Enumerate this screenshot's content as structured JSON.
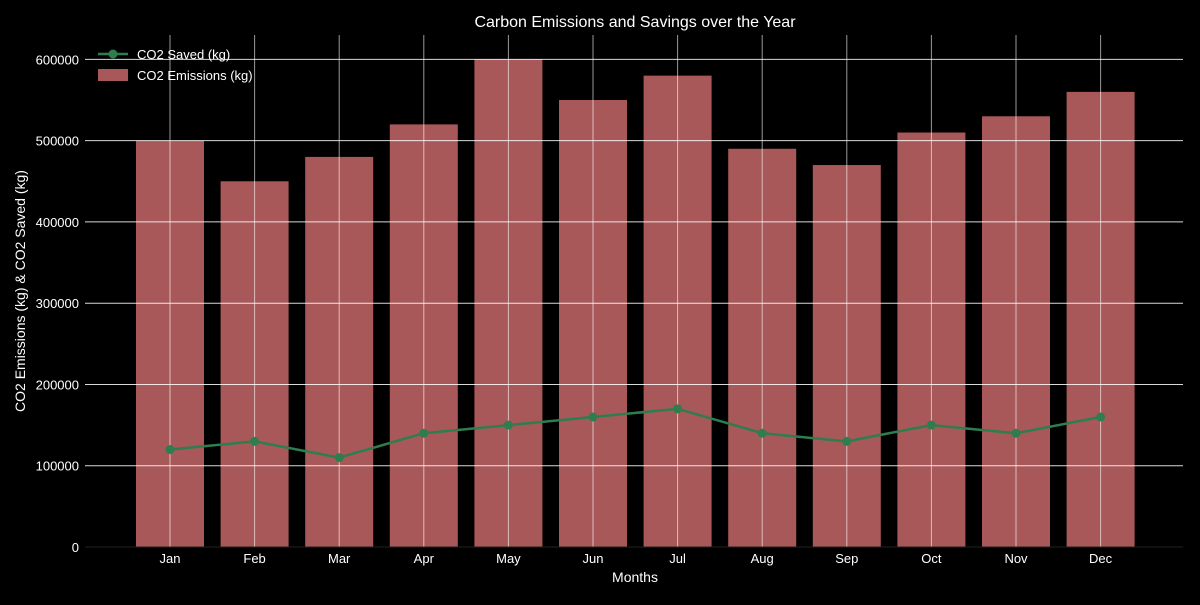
{
  "chart_data": {
    "type": "bar",
    "title": "Carbon Emissions and Savings over the Year",
    "xlabel": "Months",
    "ylabel": "CO2 Emissions (kg) & CO2 Saved (kg)",
    "categories": [
      "Jan",
      "Feb",
      "Mar",
      "Apr",
      "May",
      "Jun",
      "Jul",
      "Aug",
      "Sep",
      "Oct",
      "Nov",
      "Dec"
    ],
    "ylim": [
      0,
      630000
    ],
    "yticks": [
      0,
      100000,
      200000,
      300000,
      400000,
      500000,
      600000
    ],
    "ytick_labels": [
      "0",
      "100000",
      "200000",
      "300000",
      "400000",
      "500000",
      "600000"
    ],
    "grid": true,
    "legend_position": "top-left",
    "series": [
      {
        "name": "CO2 Emissions (kg)",
        "type": "bar",
        "color": "#a85858",
        "values": [
          500000,
          450000,
          480000,
          520000,
          600000,
          550000,
          580000,
          490000,
          470000,
          510000,
          530000,
          560000
        ]
      },
      {
        "name": "CO2 Saved (kg)",
        "type": "line",
        "color": "#2e7d4f",
        "values": [
          120000,
          130000,
          110000,
          140000,
          150000,
          160000,
          170000,
          140000,
          130000,
          150000,
          140000,
          160000
        ]
      }
    ],
    "legend_order": [
      "CO2 Saved (kg)",
      "CO2 Emissions (kg)"
    ]
  }
}
